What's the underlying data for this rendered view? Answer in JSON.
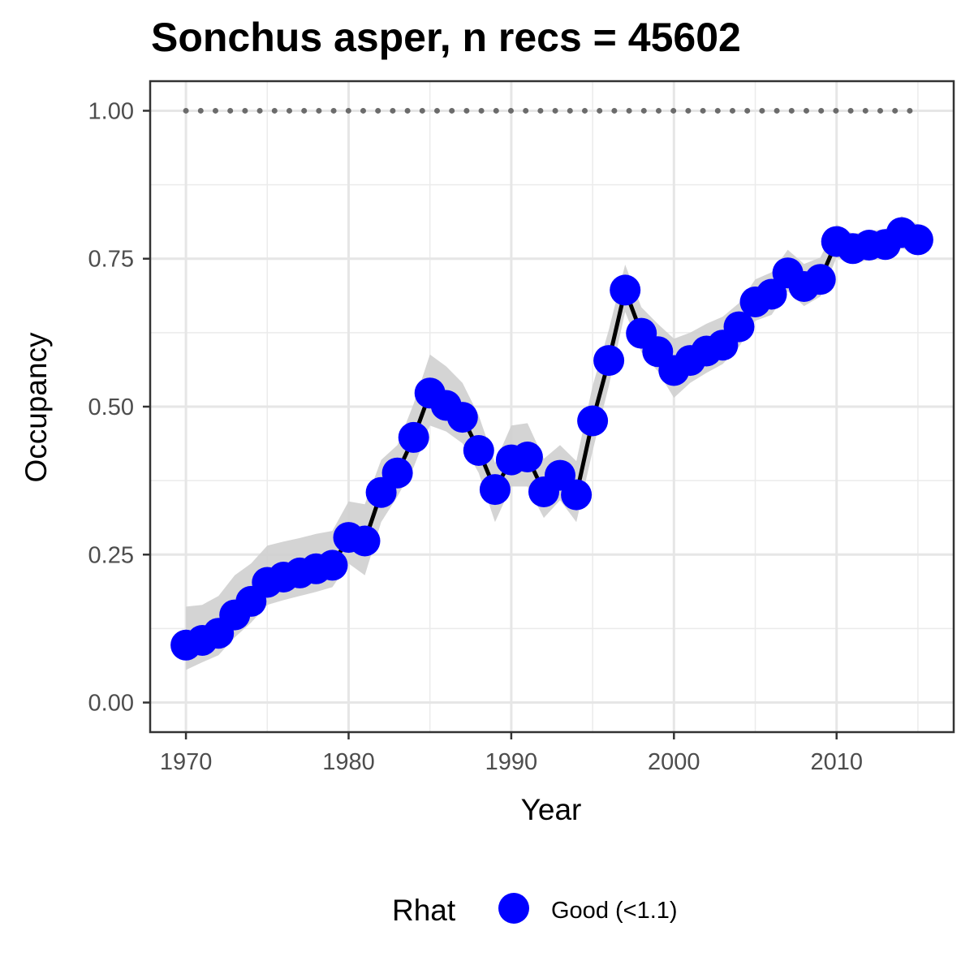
{
  "chart_data": {
    "type": "line",
    "title": "Sonchus asper, n recs = 45602",
    "xlabel": "Year",
    "ylabel": "Occupancy",
    "xlim": [
      1967.8,
      2017.2
    ],
    "ylim": [
      -0.05,
      1.05
    ],
    "x_ticks": [
      1970,
      1980,
      1990,
      2000,
      2010
    ],
    "x_tick_labels": [
      "1970",
      "1980",
      "1990",
      "2000",
      "2010"
    ],
    "y_ticks": [
      0,
      0.25,
      0.5,
      0.75,
      1.0
    ],
    "y_tick_labels": [
      "0.00",
      "0.25",
      "0.50",
      "0.75",
      "1.00"
    ],
    "x_minor_ticks": [
      1975,
      1985,
      1995,
      2005,
      2015
    ],
    "y_minor_ticks": [
      0.125,
      0.375,
      0.625,
      0.875
    ],
    "grid": true,
    "reference_line": {
      "y": 1.0,
      "style": "dotted",
      "color": "#6b6b6b"
    },
    "ribbon_color": "#cfcfcf",
    "line_color": "#000000",
    "point_color": "#0000ff",
    "legend": {
      "position": "bottom",
      "title": "Rhat",
      "entries": [
        {
          "label": "Good (<1.1)",
          "color": "#0000ff"
        }
      ]
    },
    "x": [
      1970,
      1971,
      1972,
      1973,
      1974,
      1975,
      1976,
      1977,
      1978,
      1979,
      1980,
      1981,
      1982,
      1983,
      1984,
      1985,
      1986,
      1987,
      1988,
      1989,
      1990,
      1991,
      1992,
      1993,
      1994,
      1995,
      1996,
      1997,
      1998,
      1999,
      2000,
      2001,
      2002,
      2003,
      2004,
      2005,
      2006,
      2007,
      2008,
      2009,
      2010,
      2011,
      2012,
      2013,
      2014,
      2015
    ],
    "series": [
      {
        "values": [
          0.097,
          0.105,
          0.117,
          0.148,
          0.171,
          0.203,
          0.212,
          0.219,
          0.226,
          0.232,
          0.279,
          0.273,
          0.355,
          0.388,
          0.448,
          0.523,
          0.502,
          0.482,
          0.426,
          0.36,
          0.41,
          0.415,
          0.356,
          0.384,
          0.351,
          0.476,
          0.578,
          0.697,
          0.624,
          0.593,
          0.561,
          0.578,
          0.594,
          0.604,
          0.635,
          0.677,
          0.69,
          0.726,
          0.703,
          0.715,
          0.779,
          0.767,
          0.773,
          0.774,
          0.794,
          0.782
        ],
        "lower": [
          0.055,
          0.068,
          0.08,
          0.11,
          0.135,
          0.165,
          0.173,
          0.18,
          0.187,
          0.195,
          0.235,
          0.215,
          0.305,
          0.348,
          0.398,
          0.468,
          0.458,
          0.438,
          0.388,
          0.305,
          0.365,
          0.365,
          0.312,
          0.342,
          0.305,
          0.425,
          0.535,
          0.66,
          0.592,
          0.56,
          0.515,
          0.54,
          0.557,
          0.572,
          0.601,
          0.645,
          0.655,
          0.695,
          0.67,
          0.686,
          0.752,
          0.742,
          0.748,
          0.749,
          0.768,
          0.757
        ],
        "upper": [
          0.162,
          0.165,
          0.18,
          0.215,
          0.235,
          0.265,
          0.272,
          0.278,
          0.285,
          0.29,
          0.34,
          0.335,
          0.41,
          0.435,
          0.505,
          0.588,
          0.568,
          0.54,
          0.485,
          0.405,
          0.468,
          0.472,
          0.412,
          0.435,
          0.408,
          0.535,
          0.63,
          0.74,
          0.668,
          0.64,
          0.615,
          0.625,
          0.64,
          0.652,
          0.675,
          0.715,
          0.727,
          0.765,
          0.741,
          0.752,
          0.808,
          0.792,
          0.797,
          0.8,
          0.822,
          0.808
        ]
      }
    ]
  }
}
